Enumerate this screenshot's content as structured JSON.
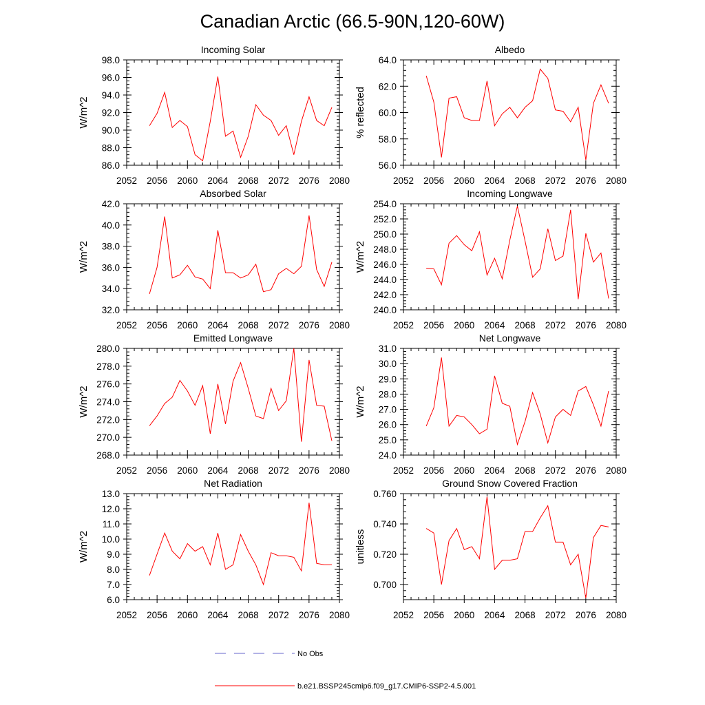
{
  "title": "Canadian Arctic (66.5-90N,120-60W)",
  "legend": {
    "entries": [
      {
        "label": "No Obs",
        "color": "#6666cc",
        "dash": "dashed"
      },
      {
        "label": "b.e21.BSSP245cmip6.f09_g17.CMIP6-SSP2-4.5.001",
        "color": "#ff0000",
        "dash": "solid"
      }
    ]
  },
  "chart_data": [
    {
      "type": "line",
      "title": "Incoming Solar",
      "ylabel": "W/m^2",
      "xlim": [
        2052,
        2080
      ],
      "ylim": [
        86,
        98
      ],
      "xticks": [
        "2052",
        "2056",
        "2060",
        "2064",
        "2068",
        "2072",
        "2076",
        "2080"
      ],
      "yticks": [
        "86.0",
        "88.0",
        "90.0",
        "92.0",
        "94.0",
        "96.0",
        "98.0"
      ],
      "series": [
        {
          "color": "#ff0000",
          "x": [
            2055,
            2056,
            2057,
            2058,
            2059,
            2060,
            2061,
            2062,
            2063,
            2064,
            2065,
            2066,
            2067,
            2068,
            2069,
            2070,
            2071,
            2072,
            2073,
            2074,
            2075,
            2076,
            2077,
            2078,
            2079
          ],
          "y": [
            90.5,
            91.9,
            94.3,
            90.3,
            91.1,
            90.4,
            87.2,
            86.5,
            91.0,
            96.1,
            89.3,
            89.9,
            86.9,
            89.3,
            92.9,
            91.7,
            91.1,
            89.4,
            90.5,
            87.2,
            91.0,
            93.8,
            91.1,
            90.5,
            92.6
          ]
        }
      ]
    },
    {
      "type": "line",
      "title": "Albedo",
      "ylabel": "% reflected",
      "xlim": [
        2052,
        2080
      ],
      "ylim": [
        56,
        64
      ],
      "xticks": [
        "2052",
        "2056",
        "2060",
        "2064",
        "2068",
        "2072",
        "2076",
        "2080"
      ],
      "yticks": [
        "56.0",
        "58.0",
        "60.0",
        "62.0",
        "64.0"
      ],
      "series": [
        {
          "color": "#ff0000",
          "x": [
            2055,
            2056,
            2057,
            2058,
            2059,
            2060,
            2061,
            2062,
            2063,
            2064,
            2065,
            2066,
            2067,
            2068,
            2069,
            2070,
            2071,
            2072,
            2073,
            2074,
            2075,
            2076,
            2077,
            2078,
            2079
          ],
          "y": [
            62.8,
            60.8,
            56.6,
            61.1,
            61.2,
            59.6,
            59.4,
            59.4,
            62.4,
            59.0,
            59.9,
            60.4,
            59.6,
            60.4,
            60.9,
            63.3,
            62.6,
            60.2,
            60.1,
            59.3,
            60.4,
            56.4,
            60.7,
            62.1,
            60.7
          ]
        }
      ]
    },
    {
      "type": "line",
      "title": "Absorbed Solar",
      "ylabel": "W/m^2",
      "xlim": [
        2052,
        2080
      ],
      "ylim": [
        32,
        42
      ],
      "xticks": [
        "2052",
        "2056",
        "2060",
        "2064",
        "2068",
        "2072",
        "2076",
        "2080"
      ],
      "yticks": [
        "32.0",
        "34.0",
        "36.0",
        "38.0",
        "40.0",
        "42.0"
      ],
      "series": [
        {
          "color": "#ff0000",
          "x": [
            2055,
            2056,
            2057,
            2058,
            2059,
            2060,
            2061,
            2062,
            2063,
            2064,
            2065,
            2066,
            2067,
            2068,
            2069,
            2070,
            2071,
            2072,
            2073,
            2074,
            2075,
            2076,
            2077,
            2078,
            2079
          ],
          "y": [
            33.5,
            36.0,
            40.8,
            35.0,
            35.3,
            36.2,
            35.1,
            34.9,
            34.0,
            39.5,
            35.5,
            35.5,
            35.0,
            35.3,
            36.3,
            33.7,
            33.9,
            35.4,
            35.9,
            35.4,
            36.1,
            40.9,
            35.8,
            34.2,
            36.5
          ]
        }
      ]
    },
    {
      "type": "line",
      "title": "Incoming Longwave",
      "ylabel": "W/m^2",
      "xlim": [
        2052,
        2080
      ],
      "ylim": [
        240,
        254
      ],
      "xticks": [
        "2052",
        "2056",
        "2060",
        "2064",
        "2068",
        "2072",
        "2076",
        "2080"
      ],
      "yticks": [
        "240.0",
        "242.0",
        "244.0",
        "246.0",
        "248.0",
        "250.0",
        "252.0",
        "254.0"
      ],
      "series": [
        {
          "color": "#ff0000",
          "x": [
            2055,
            2056,
            2057,
            2058,
            2059,
            2060,
            2061,
            2062,
            2063,
            2064,
            2065,
            2066,
            2067,
            2068,
            2069,
            2070,
            2071,
            2072,
            2073,
            2074,
            2075,
            2076,
            2077,
            2078,
            2079
          ],
          "y": [
            245.5,
            245.4,
            243.3,
            248.8,
            249.8,
            248.6,
            247.8,
            250.3,
            244.6,
            246.8,
            244.1,
            249.2,
            253.7,
            249.1,
            244.3,
            245.4,
            250.7,
            246.5,
            247.1,
            253.2,
            241.4,
            250.1,
            246.3,
            247.5,
            241.5
          ]
        }
      ]
    },
    {
      "type": "line",
      "title": "Emitted Longwave",
      "ylabel": "W/m^2",
      "xlim": [
        2052,
        2080
      ],
      "ylim": [
        268,
        280
      ],
      "xticks": [
        "2052",
        "2056",
        "2060",
        "2064",
        "2068",
        "2072",
        "2076",
        "2080"
      ],
      "yticks": [
        "268.0",
        "270.0",
        "272.0",
        "274.0",
        "276.0",
        "278.0",
        "280.0"
      ],
      "series": [
        {
          "color": "#ff0000",
          "x": [
            2055,
            2056,
            2057,
            2058,
            2059,
            2060,
            2061,
            2062,
            2063,
            2064,
            2065,
            2066,
            2067,
            2068,
            2069,
            2070,
            2071,
            2072,
            2073,
            2074,
            2075,
            2076,
            2077,
            2078,
            2079
          ],
          "y": [
            271.3,
            272.4,
            273.8,
            274.5,
            276.4,
            275.2,
            273.6,
            275.8,
            270.4,
            276.0,
            271.5,
            276.3,
            278.4,
            275.5,
            272.4,
            272.1,
            275.5,
            273.0,
            274.1,
            280.0,
            269.5,
            278.7,
            273.6,
            273.5,
            269.6
          ]
        }
      ]
    },
    {
      "type": "line",
      "title": "Net Longwave",
      "ylabel": "W/m^2",
      "xlim": [
        2052,
        2080
      ],
      "ylim": [
        24,
        31
      ],
      "xticks": [
        "2052",
        "2056",
        "2060",
        "2064",
        "2068",
        "2072",
        "2076",
        "2080"
      ],
      "yticks": [
        "24.0",
        "25.0",
        "26.0",
        "27.0",
        "28.0",
        "29.0",
        "30.0",
        "31.0"
      ],
      "series": [
        {
          "color": "#ff0000",
          "x": [
            2055,
            2056,
            2057,
            2058,
            2059,
            2060,
            2061,
            2062,
            2063,
            2064,
            2065,
            2066,
            2067,
            2068,
            2069,
            2070,
            2071,
            2072,
            2073,
            2074,
            2075,
            2076,
            2077,
            2078,
            2079
          ],
          "y": [
            25.9,
            27.1,
            30.4,
            25.9,
            26.6,
            26.5,
            26.0,
            25.4,
            25.7,
            29.2,
            27.4,
            27.2,
            24.7,
            26.2,
            28.1,
            26.7,
            24.8,
            26.5,
            27.0,
            26.6,
            28.2,
            28.5,
            27.3,
            25.9,
            28.2
          ]
        }
      ]
    },
    {
      "type": "line",
      "title": "Net Radiation",
      "ylabel": "W/m^2",
      "xlim": [
        2052,
        2080
      ],
      "ylim": [
        6,
        13
      ],
      "xticks": [
        "2052",
        "2056",
        "2060",
        "2064",
        "2068",
        "2072",
        "2076",
        "2080"
      ],
      "yticks": [
        "6.0",
        "7.0",
        "8.0",
        "9.0",
        "10.0",
        "11.0",
        "12.0",
        "13.0"
      ],
      "series": [
        {
          "color": "#ff0000",
          "x": [
            2055,
            2056,
            2057,
            2058,
            2059,
            2060,
            2061,
            2062,
            2063,
            2064,
            2065,
            2066,
            2067,
            2068,
            2069,
            2070,
            2071,
            2072,
            2073,
            2074,
            2075,
            2076,
            2077,
            2078,
            2079
          ],
          "y": [
            7.6,
            9.0,
            10.4,
            9.2,
            8.7,
            9.7,
            9.2,
            9.5,
            8.3,
            10.4,
            8.0,
            8.3,
            10.3,
            9.2,
            8.3,
            7.0,
            9.1,
            8.9,
            8.9,
            8.8,
            7.9,
            12.4,
            8.4,
            8.3,
            8.3
          ]
        }
      ]
    },
    {
      "type": "line",
      "title": "Ground Snow Covered Fraction",
      "ylabel": "unitless",
      "xlim": [
        2052,
        2080
      ],
      "ylim": [
        0.69,
        0.76
      ],
      "xticks": [
        "2052",
        "2056",
        "2060",
        "2064",
        "2068",
        "2072",
        "2076",
        "2080"
      ],
      "yticks": [
        "0.700",
        "0.720",
        "0.740",
        "0.760"
      ],
      "ytickvals": [
        0.7,
        0.72,
        0.74,
        0.76
      ],
      "series": [
        {
          "color": "#ff0000",
          "x": [
            2055,
            2056,
            2057,
            2058,
            2059,
            2060,
            2061,
            2062,
            2063,
            2064,
            2065,
            2066,
            2067,
            2068,
            2069,
            2070,
            2071,
            2072,
            2073,
            2074,
            2075,
            2076,
            2077,
            2078,
            2079
          ],
          "y": [
            0.737,
            0.734,
            0.7,
            0.729,
            0.737,
            0.723,
            0.725,
            0.717,
            0.758,
            0.71,
            0.716,
            0.716,
            0.717,
            0.735,
            0.735,
            0.744,
            0.752,
            0.728,
            0.728,
            0.713,
            0.72,
            0.691,
            0.731,
            0.739,
            0.738
          ]
        }
      ]
    }
  ]
}
